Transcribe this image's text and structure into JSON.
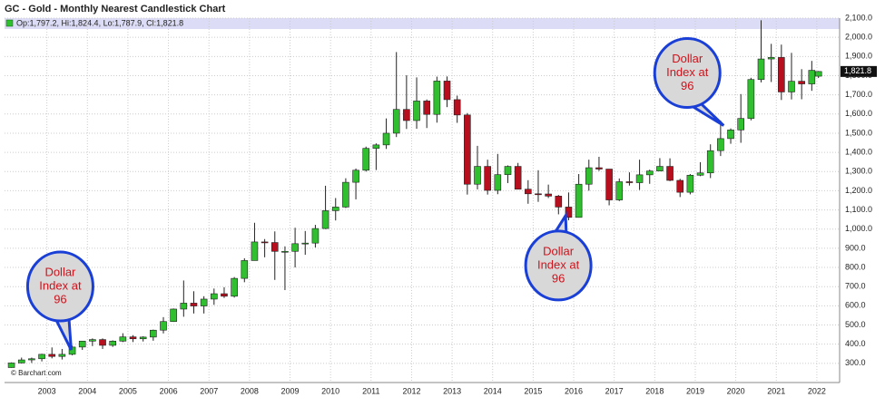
{
  "chart_data": {
    "type": "candlestick",
    "title": "GC - Gold - Monthly Nearest Candlestick Chart",
    "info": "Op:1,797.2, Hi:1,824.4, Lo:1,787.9, Cl:1,821.8",
    "credit": "© Barchart.com",
    "last_price": {
      "value": 1821.8,
      "label": "1,821.8"
    },
    "annotations": [
      {
        "lines": [
          "Dollar",
          "Index at",
          "96"
        ],
        "x": 2003.6,
        "y": 370
      },
      {
        "lines": [
          "Dollar",
          "Index at",
          "96"
        ],
        "x": 2015.8,
        "y": 1070
      },
      {
        "lines": [
          "Dollar",
          "Index at",
          "96"
        ],
        "x": 2019.7,
        "y": 1540
      }
    ],
    "up_color": "#2fbf2f",
    "down_color": "#b80f1f",
    "x": [
      2002.125,
      2002.375,
      2002.625,
      2002.875,
      2003.125,
      2003.375,
      2003.625,
      2003.875,
      2004.125,
      2004.375,
      2004.625,
      2004.875,
      2005.125,
      2005.375,
      2005.625,
      2005.875,
      2006.125,
      2006.375,
      2006.625,
      2006.875,
      2007.125,
      2007.375,
      2007.625,
      2007.875,
      2008.125,
      2008.375,
      2008.625,
      2008.875,
      2009.125,
      2009.375,
      2009.625,
      2009.875,
      2010.125,
      2010.375,
      2010.625,
      2010.875,
      2011.125,
      2011.375,
      2011.625,
      2011.875,
      2012.125,
      2012.375,
      2012.625,
      2012.875,
      2013.125,
      2013.375,
      2013.625,
      2013.875,
      2014.125,
      2014.375,
      2014.625,
      2014.875,
      2015.125,
      2015.375,
      2015.625,
      2015.875,
      2016.125,
      2016.375,
      2016.625,
      2016.875,
      2017.125,
      2017.375,
      2017.625,
      2017.875,
      2018.125,
      2018.375,
      2018.625,
      2018.875,
      2019.125,
      2019.375,
      2019.625,
      2019.875,
      2020.125,
      2020.375,
      2020.625,
      2020.875,
      2021.125,
      2021.375,
      2021.625,
      2021.875,
      2022.04
    ],
    "open": [
      278,
      302,
      318,
      324,
      347,
      336,
      347,
      385,
      416,
      424,
      394,
      416,
      438,
      428,
      437,
      473,
      518,
      583,
      614,
      599,
      635,
      663,
      650,
      743,
      836,
      933,
      930,
      884,
      884,
      924,
      927,
      1003,
      1096,
      1115,
      1244,
      1307,
      1421,
      1439,
      1500,
      1624,
      1566,
      1668,
      1598,
      1772,
      1675,
      1595,
      1234,
      1327,
      1202,
      1284,
      1327,
      1208,
      1184,
      1183,
      1172,
      1115,
      1061,
      1234,
      1320,
      1313,
      1152,
      1247,
      1242,
      1283,
      1303,
      1327,
      1254,
      1192,
      1281,
      1293,
      1409,
      1472,
      1517,
      1577,
      1780,
      1887,
      1895,
      1715,
      1771,
      1757,
      1797.2
    ],
    "high": [
      305,
      330,
      330,
      350,
      383,
      375,
      392,
      417,
      430,
      430,
      420,
      457,
      447,
      441,
      476,
      541,
      586,
      732,
      676,
      650,
      690,
      697,
      750,
      848,
      1033,
      948,
      988,
      910,
      1007,
      990,
      1022,
      1226,
      1162,
      1265,
      1316,
      1430,
      1447,
      1577,
      1923,
      1802,
      1791,
      1676,
      1795,
      1796,
      1696,
      1605,
      1434,
      1362,
      1392,
      1332,
      1345,
      1255,
      1307,
      1232,
      1178,
      1191,
      1287,
      1362,
      1377,
      1313,
      1264,
      1296,
      1362,
      1310,
      1370,
      1369,
      1262,
      1287,
      1349,
      1442,
      1566,
      1525,
      1704,
      1789,
      2089,
      1966,
      1962,
      1919,
      1834,
      1877,
      1824.4
    ],
    "low": [
      277,
      300,
      302,
      310,
      326,
      320,
      342,
      370,
      390,
      375,
      386,
      411,
      411,
      414,
      418,
      456,
      516,
      543,
      560,
      560,
      605,
      641,
      643,
      723,
      836,
      853,
      735,
      682,
      800,
      866,
      904,
      1000,
      1045,
      1110,
      1155,
      1300,
      1308,
      1418,
      1480,
      1522,
      1523,
      1527,
      1555,
      1636,
      1554,
      1180,
      1207,
      1180,
      1182,
      1240,
      1208,
      1132,
      1142,
      1162,
      1077,
      1046,
      1060,
      1200,
      1303,
      1124,
      1146,
      1227,
      1204,
      1236,
      1303,
      1250,
      1167,
      1181,
      1276,
      1266,
      1381,
      1445,
      1450,
      1567,
      1765,
      1767,
      1673,
      1676,
      1677,
      1721,
      1787.9
    ],
    "close": [
      302,
      318,
      324,
      347,
      336,
      347,
      385,
      416,
      424,
      394,
      416,
      438,
      428,
      437,
      473,
      518,
      583,
      614,
      599,
      635,
      663,
      650,
      743,
      836,
      933,
      930,
      884,
      884,
      924,
      927,
      1003,
      1096,
      1115,
      1244,
      1307,
      1421,
      1439,
      1500,
      1624,
      1566,
      1668,
      1598,
      1772,
      1675,
      1595,
      1234,
      1327,
      1202,
      1284,
      1327,
      1208,
      1184,
      1183,
      1172,
      1115,
      1061,
      1234,
      1320,
      1313,
      1152,
      1247,
      1242,
      1283,
      1303,
      1327,
      1254,
      1192,
      1281,
      1293,
      1409,
      1472,
      1517,
      1577,
      1780,
      1887,
      1895,
      1715,
      1771,
      1757,
      1828,
      1821.8
    ],
    "xlim": [
      2002,
      2022.45
    ],
    "xticks": [
      2003,
      2004,
      2005,
      2006,
      2007,
      2008,
      2009,
      2010,
      2011,
      2012,
      2013,
      2014,
      2015,
      2016,
      2017,
      2018,
      2019,
      2020,
      2021,
      2022
    ],
    "ylim": [
      200,
      2100
    ],
    "yticks": [
      {
        "value": 300,
        "label": "300.0"
      },
      {
        "value": 400,
        "label": "400.0"
      },
      {
        "value": 500,
        "label": "500.0"
      },
      {
        "value": 600,
        "label": "600.0"
      },
      {
        "value": 700,
        "label": "700.0"
      },
      {
        "value": 800,
        "label": "800.0"
      },
      {
        "value": 900,
        "label": "900.0"
      },
      {
        "value": 1000,
        "label": "1,000.0"
      },
      {
        "value": 1100,
        "label": "1,100.0"
      },
      {
        "value": 1200,
        "label": "1,200.0"
      },
      {
        "value": 1300,
        "label": "1,300.0"
      },
      {
        "value": 1400,
        "label": "1,400.0"
      },
      {
        "value": 1500,
        "label": "1,500.0"
      },
      {
        "value": 1600,
        "label": "1,600.0"
      },
      {
        "value": 1700,
        "label": "1,700.0"
      },
      {
        "value": 1800,
        "label": "1,800.0"
      },
      {
        "value": 1900,
        "label": "1,900.0"
      },
      {
        "value": 2000,
        "label": "2,000.0"
      },
      {
        "value": 2100,
        "label": "2,100.0"
      }
    ],
    "grid": true
  }
}
